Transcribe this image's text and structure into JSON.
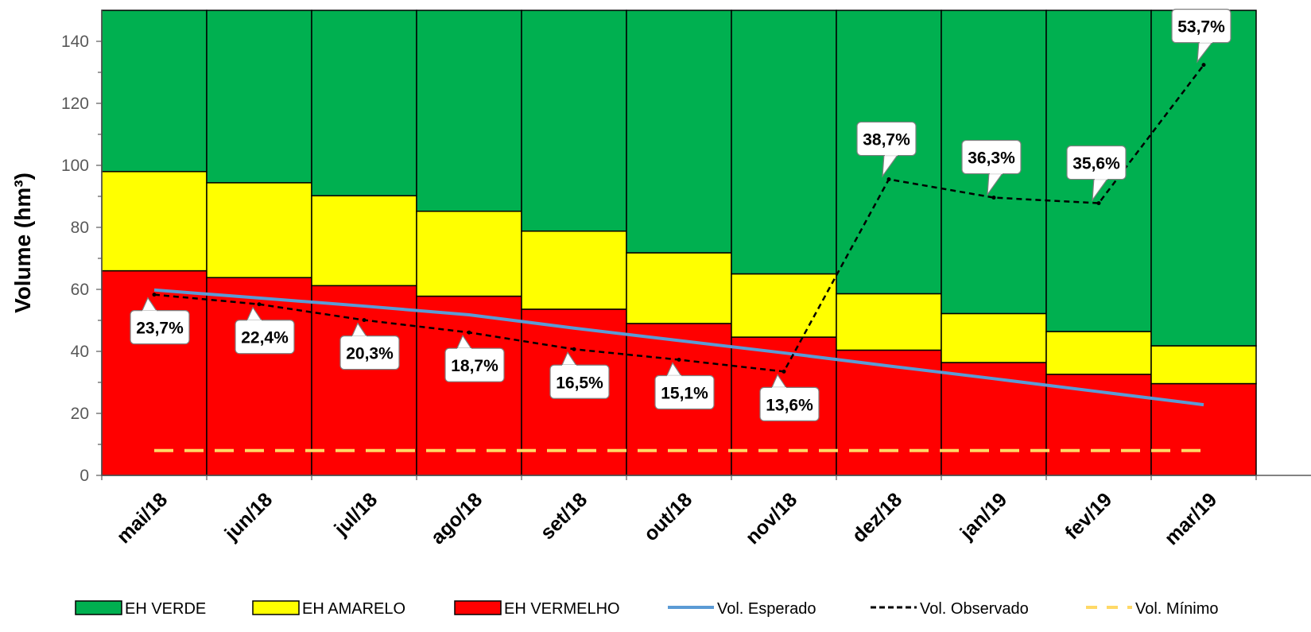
{
  "chart_data": {
    "type": "bar",
    "stacked": true,
    "categories": [
      "mai/18",
      "jun/18",
      "jul/18",
      "ago/18",
      "set/18",
      "out/18",
      "nov/18",
      "dez/18",
      "jan/19",
      "fev/19",
      "mar/19"
    ],
    "ylabel": "Volume (hm³)",
    "ylim": [
      0,
      150
    ],
    "yticks": [
      0,
      20,
      40,
      60,
      80,
      100,
      120,
      140
    ],
    "series": [
      {
        "name": "EH VERMELHO",
        "kind": "bar",
        "color": "#ff0000",
        "values": [
          66,
          63.8,
          61.2,
          57.8,
          53.6,
          49,
          44.6,
          40.4,
          36.4,
          32.6,
          29.6
        ]
      },
      {
        "name": "EH AMARELO",
        "kind": "bar",
        "color": "#ffff00",
        "values": [
          32,
          30.6,
          29,
          27.4,
          25.2,
          22.8,
          20.4,
          18.2,
          15.8,
          13.8,
          12.2
        ]
      },
      {
        "name": "EH VERDE",
        "kind": "bar",
        "color": "#00b050",
        "values": [
          52,
          55.6,
          59.8,
          64.8,
          71.2,
          78.2,
          85,
          91.4,
          97.8,
          103.6,
          108.2
        ]
      },
      {
        "name": "Vol. Esperado",
        "kind": "line",
        "color": "#5b9bd5",
        "values": [
          59.8,
          57.2,
          54.6,
          51.8,
          47.5,
          43.5,
          39.5,
          35.3,
          31.2,
          27,
          22.8
        ]
      },
      {
        "name": "Vol. Observado",
        "kind": "line",
        "color": "#000000",
        "dash": "dashed",
        "values": [
          58.3,
          55.2,
          50.1,
          46.1,
          40.7,
          37.3,
          33.5,
          95.5,
          89.6,
          87.8,
          132.4
        ],
        "labels": [
          "23,7%",
          "22,4%",
          "20,3%",
          "18,7%",
          "16,5%",
          "15,1%",
          "13,6%",
          "38,7%",
          "36,3%",
          "35,6%",
          "53,7%"
        ]
      },
      {
        "name": "Vol. Mínimo",
        "kind": "line",
        "color": "#ffd966",
        "dash": "dashed",
        "values": [
          8,
          8,
          8,
          8,
          8,
          8,
          8,
          8,
          8,
          8,
          8
        ]
      }
    ],
    "legend_position": "bottom",
    "grid": false
  }
}
